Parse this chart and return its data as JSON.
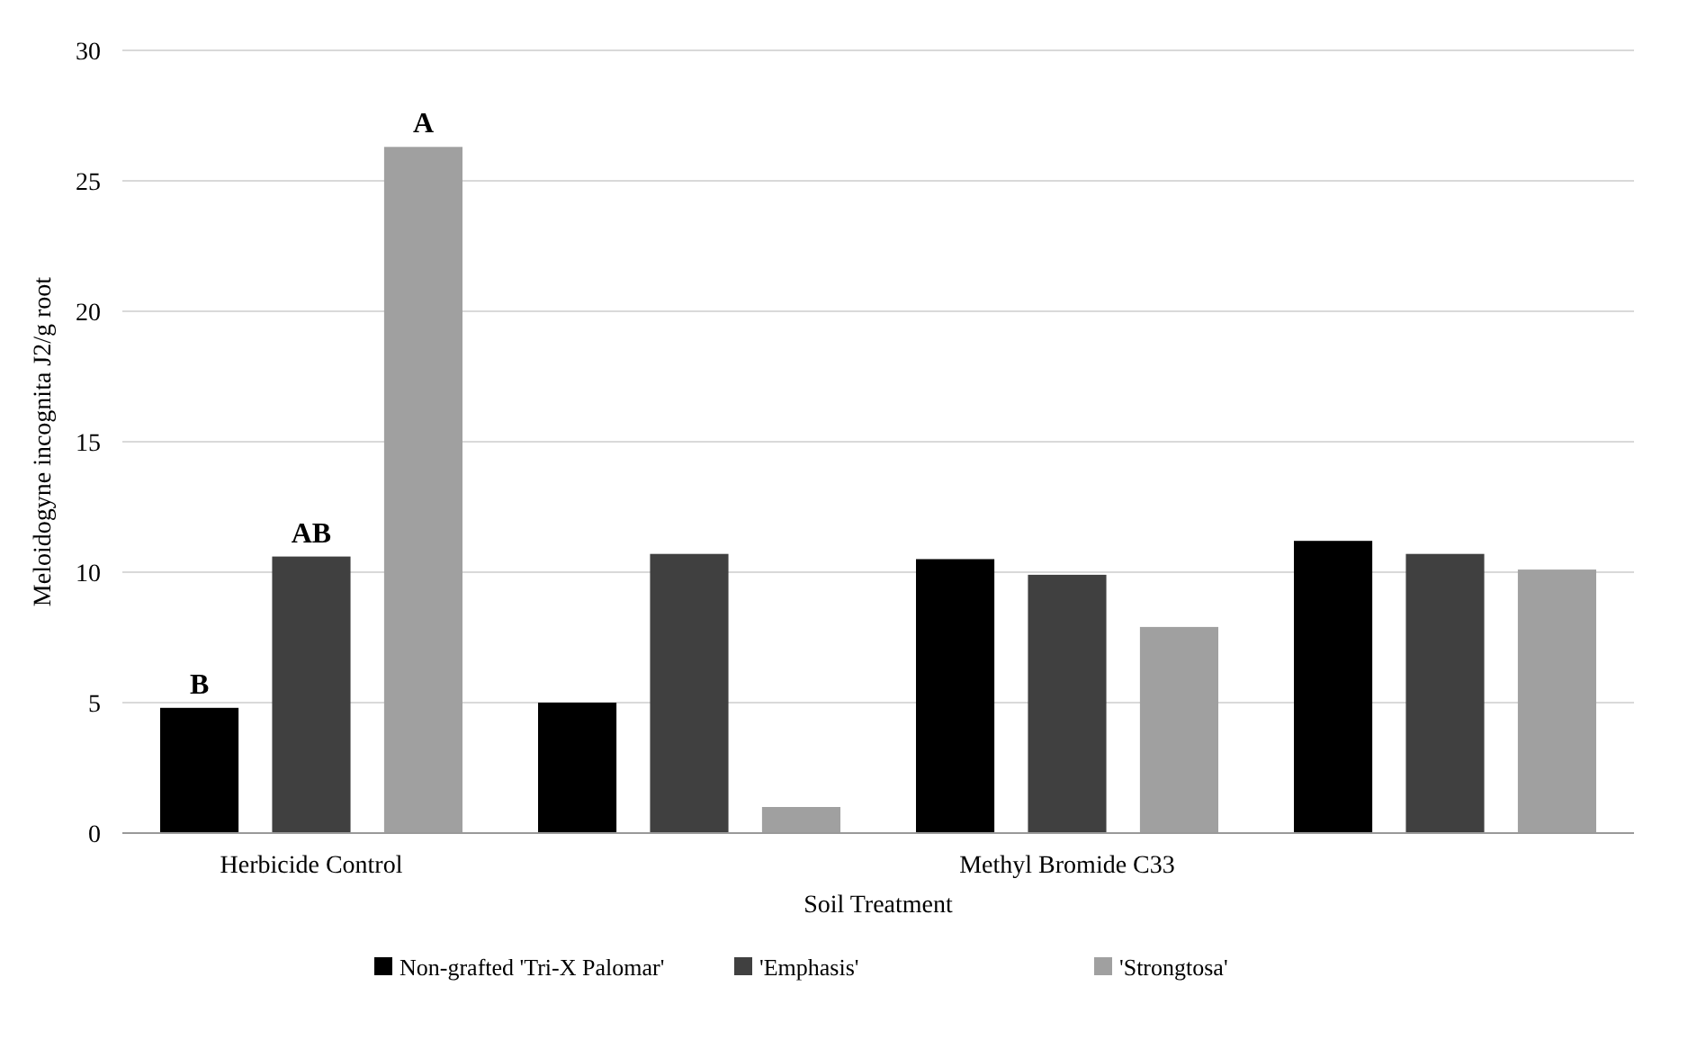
{
  "chart_data": {
    "type": "bar",
    "xlabel": "Soil Treatment",
    "ylabel": "Meloidogyne incognita J2/g root",
    "categories": [
      "Herbicide Control",
      null,
      "Methyl Bromide C33",
      null
    ],
    "series": [
      {
        "name": "Non-grafted 'Tri-X Palomar'",
        "color": "#000000",
        "values": [
          4.8,
          5.0,
          10.5,
          11.2
        ]
      },
      {
        "name": "'Emphasis'",
        "color": "#404040",
        "values": [
          10.6,
          10.7,
          9.9,
          10.7
        ]
      },
      {
        "name": "'Strongtosa'",
        "color": "#a0a0a0",
        "values": [
          26.3,
          1.0,
          7.9,
          10.1
        ]
      }
    ],
    "ylim": [
      0,
      30
    ],
    "yticks": [
      0,
      5,
      10,
      15,
      20,
      25,
      30
    ],
    "grid": "y",
    "legend": "bottom",
    "annotations": [
      "B",
      "AB",
      "A"
    ]
  }
}
